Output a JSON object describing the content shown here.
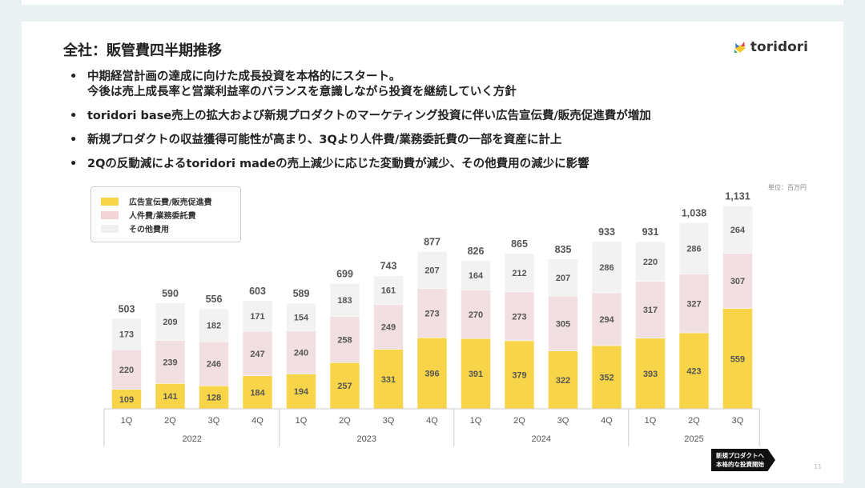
{
  "slide": {
    "title": "全社：販管費四半期推移",
    "logo_text": "toridori",
    "bullets": [
      [
        "中期経営計画の達成に向けた成長投資を本格的にスタート。",
        "今後は売上成長率と営業利益率のバランスを意識しながら投資を継続していく方針"
      ],
      [
        "toridori base売上の拡大および新規プロダクトのマーケティング投資に伴い広告宣伝費/販売促進費が増加"
      ],
      [
        "新規プロダクトの収益獲得可能性が高まり、3Qより人件費/業務委託費の一部を資産に計上"
      ],
      [
        "2Qの反動減によるtoridori madeの売上減少に応じた変動費が減少、その他費用の減少に影響"
      ]
    ],
    "unit": "単位：百万円",
    "badge": [
      "新規プロダクトへ",
      "本格的な投資開始"
    ],
    "page_number": "11"
  },
  "chart_data": {
    "type": "bar",
    "stacked": true,
    "categories": [
      "1Q",
      "2Q",
      "3Q",
      "4Q",
      "1Q",
      "2Q",
      "3Q",
      "4Q",
      "1Q",
      "2Q",
      "3Q",
      "4Q",
      "1Q",
      "2Q",
      "3Q"
    ],
    "year_groups": [
      {
        "label": "2022",
        "count": 4
      },
      {
        "label": "2023",
        "count": 4
      },
      {
        "label": "2024",
        "count": 4
      },
      {
        "label": "2025",
        "count": 3
      }
    ],
    "series": [
      {
        "name": "広告宣伝費/販売促進費",
        "color": "#f8d548",
        "values": [
          109,
          141,
          128,
          184,
          194,
          257,
          331,
          396,
          391,
          379,
          322,
          352,
          393,
          423,
          559
        ]
      },
      {
        "name": "人件費/業務委託費",
        "color": "#f2dfe1",
        "values": [
          220,
          239,
          246,
          247,
          240,
          258,
          249,
          273,
          270,
          273,
          305,
          294,
          317,
          327,
          307
        ]
      },
      {
        "name": "その他費用",
        "color": "#f2f2f2",
        "values": [
          173,
          209,
          182,
          171,
          154,
          183,
          161,
          207,
          164,
          212,
          207,
          286,
          220,
          286,
          264
        ]
      }
    ],
    "totals": [
      "503",
      "590",
      "556",
      "603",
      "589",
      "699",
      "743",
      "877",
      "826",
      "865",
      "835",
      "933",
      "931",
      "1,038",
      "1,131"
    ],
    "legend_position": "top-left"
  }
}
